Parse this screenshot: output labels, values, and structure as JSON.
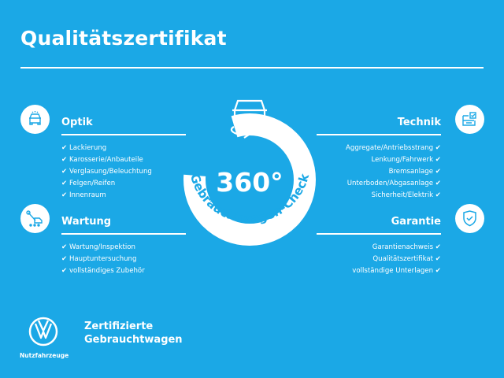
{
  "title": "Qualitätszertifikat",
  "colors": {
    "background": "#1ba8e6",
    "foreground": "#ffffff"
  },
  "center": {
    "degrees": "360°",
    "caption": "Gebrauchtwagen-Check",
    "icon": "car-rotate-icon"
  },
  "check_mark": "✔",
  "sections": {
    "optik": {
      "title": "Optik",
      "icon": "car-front-icon",
      "items": [
        "Lackierung",
        "Karosserie/Anbauteile",
        "Verglasung/Beleuchtung",
        "Felgen/Reifen",
        "Innenraum"
      ]
    },
    "wartung": {
      "title": "Wartung",
      "icon": "wrench-car-icon",
      "items": [
        "Wartung/Inspektion",
        "Hauptuntersuchung",
        "vollständiges Zubehör"
      ]
    },
    "technik": {
      "title": "Technik",
      "icon": "engine-check-icon",
      "items": [
        "Aggregate/Antriebsstrang",
        "Lenkung/Fahrwerk",
        "Bremsanlage",
        "Unterboden/Abgasanlage",
        "Sicherheit/Elektrik"
      ]
    },
    "garantie": {
      "title": "Garantie",
      "icon": "shield-check-icon",
      "items": [
        "Garantienachweis",
        "Qualitätszertifikat",
        "vollständige Unterlagen"
      ]
    }
  },
  "footer": {
    "brand_line1": "Zertifizierte",
    "brand_line2": "Gebrauchtwagen",
    "logo_caption": "Nutzfahrzeuge",
    "logo": "vw-logo"
  }
}
